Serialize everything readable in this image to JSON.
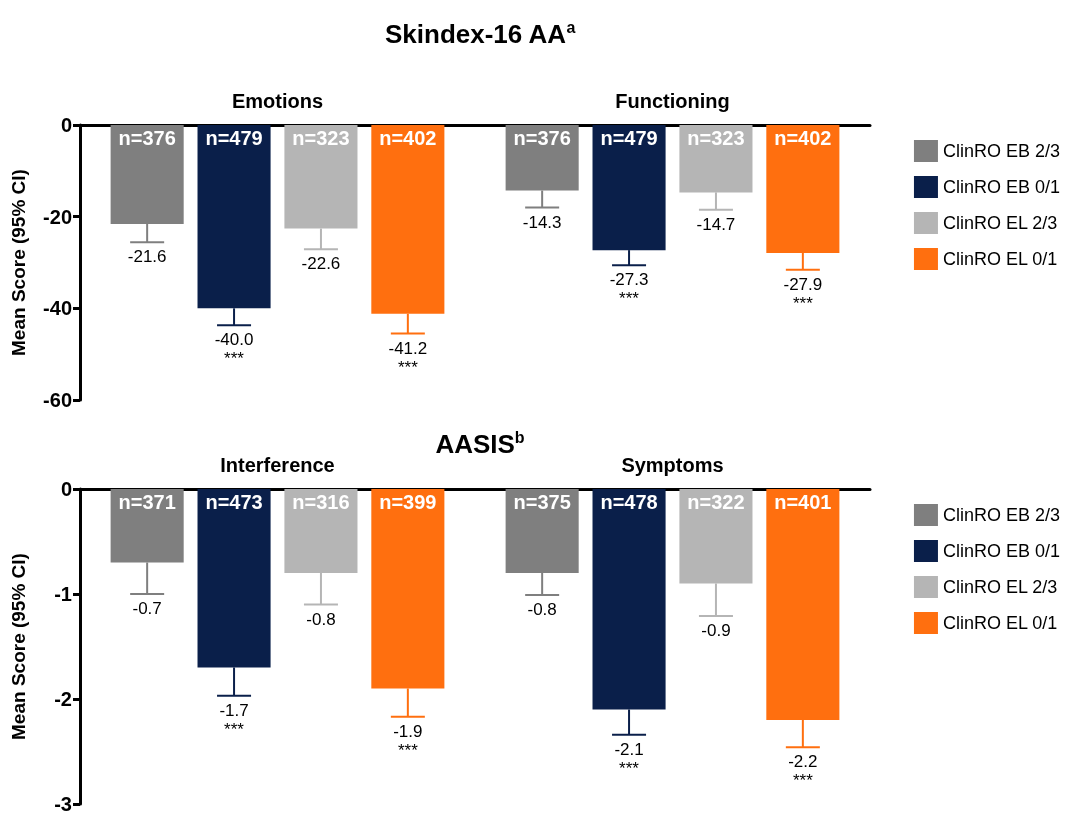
{
  "chart_data": [
    {
      "type": "bar",
      "title": "Skindex-16 AA$^{a}$",
      "ylabel": "Mean Score (95% CI)",
      "categories": [
        "Emotions",
        "Functioning"
      ],
      "series": [
        {
          "name": "ClinRO EB 2/3",
          "color": "#7f7f7f",
          "values": [
            -21.6,
            -14.3
          ],
          "errors": [
            [
              -25.6,
              -21.6
            ],
            [
              -18.0,
              -14.3
            ]
          ],
          "value_labels": [
            "-21.6",
            "-14.3"
          ]
        },
        {
          "name": "ClinRO EB 0/1",
          "color": "#0a1f4a",
          "values": [
            -40.0,
            -27.3
          ],
          "errors": [
            [
              -43.7,
              -40.0
            ],
            [
              -30.6,
              -27.3
            ]
          ],
          "value_labels": [
            "-40.0\n***",
            "-27.3\n***"
          ]
        },
        {
          "name": "ClinRO EL 2/3",
          "color": "#b5b5b5",
          "values": [
            -22.6,
            -14.7
          ],
          "errors": [
            [
              -27.1,
              -22.6
            ],
            [
              -18.5,
              -14.7
            ]
          ],
          "value_labels": [
            "-22.6",
            "-14.7"
          ]
        },
        {
          "name": "ClinRO EL 0/1",
          "color": "#ff6f0f",
          "values": [
            -41.2,
            -27.9
          ],
          "errors": [
            [
              -45.5,
              -41.2
            ],
            [
              -31.6,
              -27.9
            ]
          ],
          "value_labels": [
            "-41.2\n***",
            "-27.9\n***"
          ]
        }
      ],
      "annotations": [
        "n=376",
        "n=479",
        "n=323",
        "n=402",
        "n=376",
        "n=479",
        "n=323",
        "n=402"
      ],
      "ylim": [
        -60,
        0
      ],
      "yticks": [
        -60,
        -40,
        -20,
        0
      ],
      "grid": false,
      "legend": "top right"
    },
    {
      "type": "bar",
      "title": "AASIS$^{b}$",
      "ylabel": "Mean Score (95% CI)",
      "categories": [
        "Interference",
        "Symptoms"
      ],
      "series": [
        {
          "name": "ClinRO EB 2/3",
          "color": "#7f7f7f",
          "values": [
            -0.7,
            -0.8
          ],
          "errors": [
            [
              -1.0,
              -0.7
            ],
            [
              -1.01,
              -0.8
            ]
          ],
          "value_labels": [
            "-0.7",
            "-0.8"
          ]
        },
        {
          "name": "ClinRO EB 0/1",
          "color": "#0a1f4a",
          "values": [
            -1.7,
            -2.1
          ],
          "errors": [
            [
              -1.97,
              -1.7
            ],
            [
              -2.34,
              -2.1
            ]
          ],
          "value_labels": [
            "-1.7\n***",
            "-2.1\n***"
          ]
        },
        {
          "name": "ClinRO EL 2/3",
          "color": "#b5b5b5",
          "values": [
            -0.8,
            -0.9
          ],
          "errors": [
            [
              -1.1,
              -0.8
            ],
            [
              -1.21,
              -0.9
            ]
          ],
          "value_labels": [
            "-0.8",
            "-0.9"
          ]
        },
        {
          "name": "ClinRO EL 0/1",
          "color": "#ff6f0f",
          "values": [
            -1.9,
            -2.2
          ],
          "errors": [
            [
              -2.17,
              -1.9
            ],
            [
              -2.46,
              -2.2
            ]
          ],
          "value_labels": [
            "-1.9\n***",
            "-2.2\n***"
          ]
        }
      ],
      "annotations": [
        "n=371",
        "n=473",
        "n=316",
        "n=399",
        "n=375",
        "n=478",
        "n=322",
        "n=401"
      ],
      "ylim": [
        -3,
        0
      ],
      "yticks": [
        -3,
        -2,
        -1,
        0
      ],
      "grid": false,
      "legend": "top right"
    }
  ]
}
